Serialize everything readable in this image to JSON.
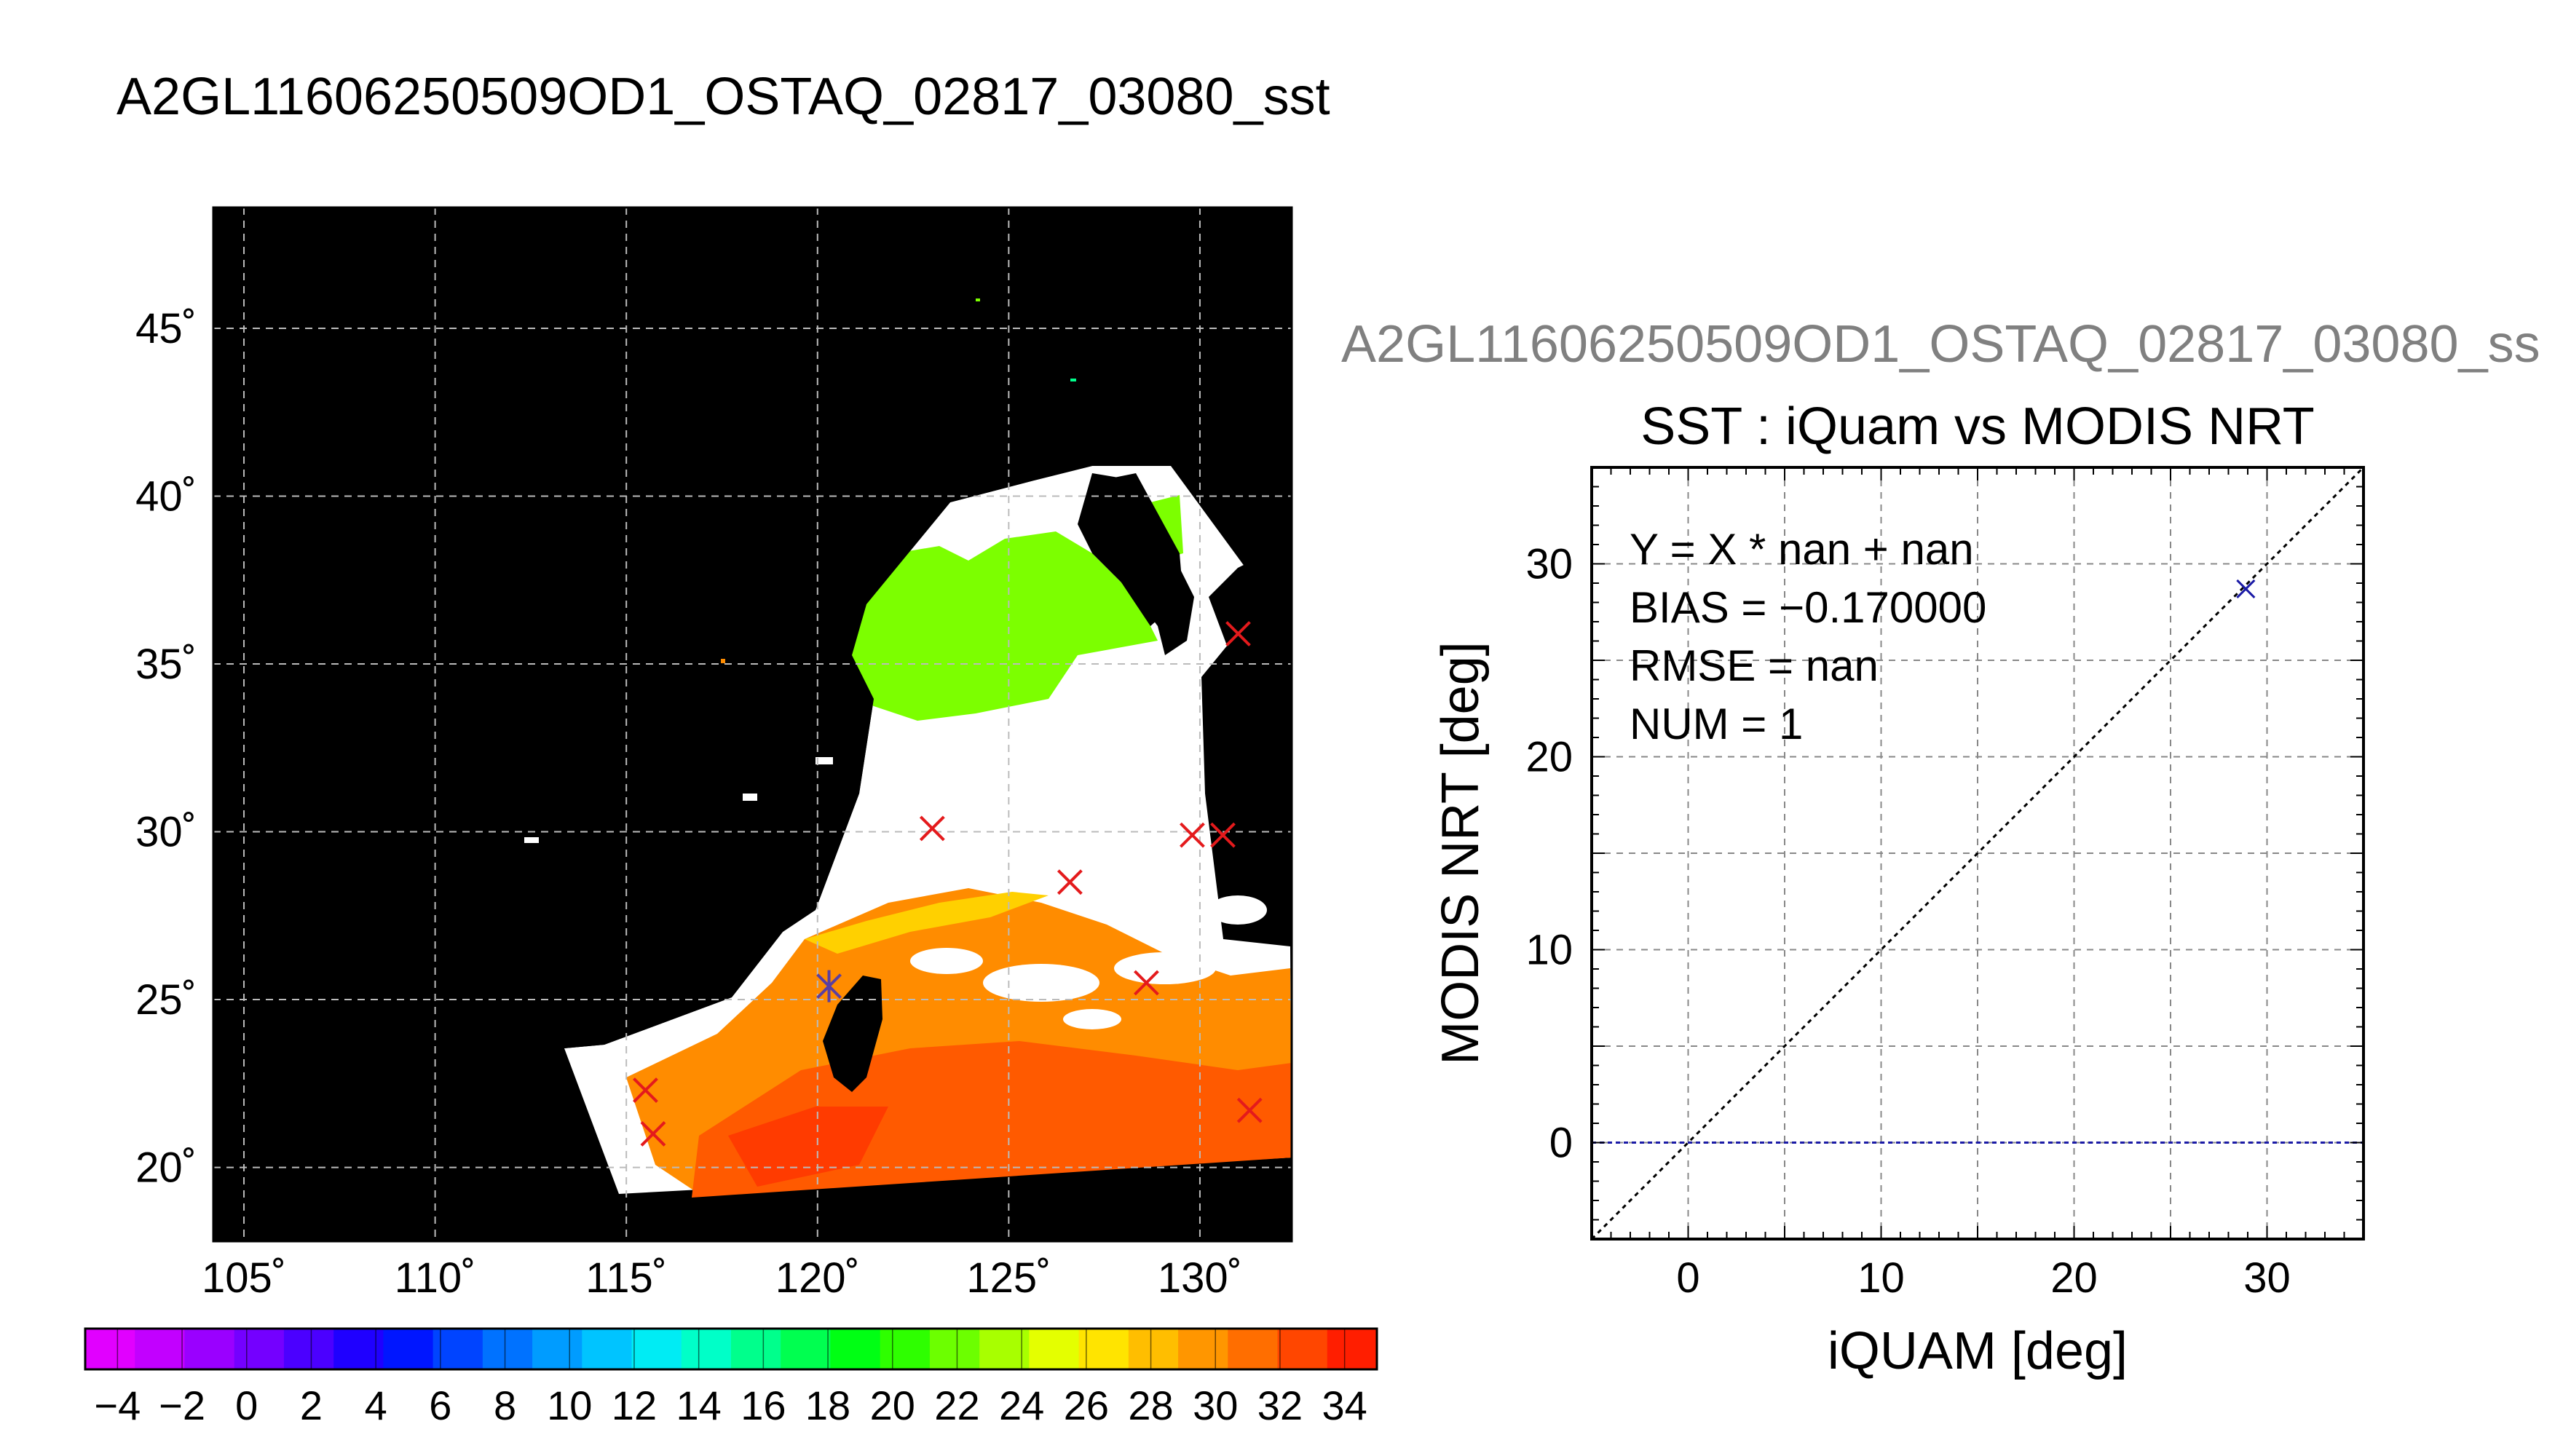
{
  "header": {
    "title": "A2GL11606250509OD1_OSTAQ_02817_03080_sst"
  },
  "map_panel": {
    "lon_ticks": [
      "105˚",
      "110˚",
      "115˚",
      "120˚",
      "125˚",
      "130˚"
    ],
    "lat_ticks": [
      "45˚",
      "40˚",
      "35˚",
      "30˚",
      "25˚",
      "20˚"
    ],
    "lon_values": [
      105,
      110,
      115,
      120,
      125,
      130
    ],
    "lat_values": [
      45,
      40,
      35,
      30,
      25,
      20
    ],
    "lon_range": [
      104.2,
      132.4
    ],
    "lat_range": [
      17.8,
      48.6
    ],
    "background_color": "#000000",
    "grid_color": "#bbbbbb",
    "marker_color": "#e41a1c",
    "highlight_marker_color": "#5b3fa0",
    "match_points": [
      {
        "lon": 131.0,
        "lat": 35.9
      },
      {
        "lon": 123.0,
        "lat": 30.1
      },
      {
        "lon": 129.8,
        "lat": 29.9
      },
      {
        "lon": 130.6,
        "lat": 29.9
      },
      {
        "lon": 126.6,
        "lat": 28.5
      },
      {
        "lon": 128.6,
        "lat": 25.5
      },
      {
        "lon": 120.3,
        "lat": 25.4,
        "highlight": true
      },
      {
        "lon": 115.5,
        "lat": 22.3
      },
      {
        "lon": 115.7,
        "lat": 21.0
      },
      {
        "lon": 131.3,
        "lat": 21.7
      }
    ]
  },
  "colorbar": {
    "ticks": [
      "−4",
      "−2",
      "0",
      "2",
      "4",
      "6",
      "8",
      "10",
      "12",
      "14",
      "16",
      "18",
      "20",
      "22",
      "24",
      "26",
      "28",
      "30",
      "32",
      "34"
    ],
    "range": [
      -5,
      35
    ],
    "colors": [
      "#e100ff",
      "#c200ff",
      "#9a00ff",
      "#7400ff",
      "#4b00ff",
      "#1f00ff",
      "#0016ff",
      "#0044ff",
      "#0072ff",
      "#009cff",
      "#00c4ff",
      "#00ecf4",
      "#00ffc8",
      "#00ff8c",
      "#00ff50",
      "#00ff14",
      "#2eff00",
      "#6cff00",
      "#a8ff00",
      "#e4ff00",
      "#ffe400",
      "#ffbe00",
      "#ff9600",
      "#ff6e00",
      "#ff4600",
      "#ff1e00"
    ]
  },
  "scatter_panel": {
    "subtitle": "A2GL11606250509OD1_OSTAQ_02817_03080_ss",
    "stats_lines": [
      "Y = X * nan + nan",
      "BIAS = −0.170000",
      "RMSE = nan",
      "NUM = 1"
    ]
  },
  "chart_data": [
    {
      "type": "scatter",
      "title": "SST : iQuam vs MODIS NRT",
      "xlabel": "iQUAM [deg]",
      "ylabel": "MODIS NRT [deg]",
      "xlim": [
        -5,
        35
      ],
      "ylim": [
        -5,
        35
      ],
      "xticks": [
        "0",
        "10",
        "20",
        "30"
      ],
      "yticks": [
        "0",
        "10",
        "20",
        "30"
      ],
      "xtick_values": [
        0,
        10,
        20,
        30
      ],
      "ytick_values": [
        0,
        10,
        20,
        30
      ],
      "grid": true,
      "series": [
        {
          "points": [
            {
              "x": 28.9,
              "y": 28.7
            }
          ],
          "marker": "x",
          "color": "#1a1aa6"
        }
      ],
      "one_to_one_line": true,
      "horizontal_reference_y": 0,
      "horizontal_reference_color": "#1a1aa6"
    }
  ]
}
